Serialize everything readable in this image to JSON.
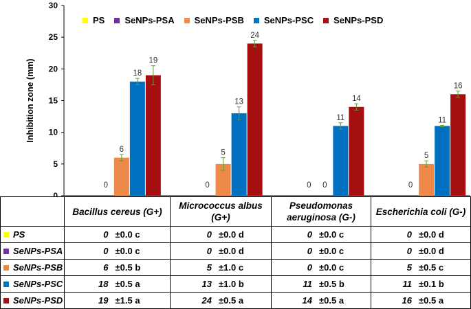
{
  "chart_data": {
    "type": "bar",
    "title": "",
    "xlabel": "",
    "ylabel": "Inhibition zone (mm)",
    "ylim": [
      0,
      30
    ],
    "yticks": [
      "0",
      "5",
      "10",
      "15",
      "20",
      "25",
      "30"
    ],
    "grid": false,
    "legend_position": "top",
    "categories": [
      "Bacillus cereus (G+)",
      "Micrococcus albus (G+)",
      "Pseudomonas aeruginosa (G-)",
      "Escherichia coli (G-)"
    ],
    "series": [
      {
        "name": "PS",
        "color": "#ffff00",
        "values": [
          0,
          0,
          0,
          0
        ],
        "errors": [
          0.0,
          0.0,
          0.0,
          0.0
        ],
        "error_text": [
          "±0.0",
          "±0.0",
          "±0.0",
          "±0.0"
        ],
        "letters": [
          "c",
          "d",
          "c",
          "d"
        ],
        "bar_labels": [
          "",
          "",
          "",
          ""
        ]
      },
      {
        "name": "SeNPs-PSA",
        "color": "#7030a0",
        "values": [
          0,
          0,
          0,
          0
        ],
        "errors": [
          0.0,
          0.0,
          0.0,
          0.0
        ],
        "error_text": [
          "±0.0",
          "±0.0",
          "±0.0",
          "±0.0"
        ],
        "letters": [
          "c",
          "d",
          "c",
          "d"
        ],
        "bar_labels": [
          "0",
          "0",
          "0",
          "0"
        ]
      },
      {
        "name": "SeNPs-PSB",
        "color": "#ed8a4a",
        "values": [
          6,
          5,
          0,
          5
        ],
        "errors": [
          0.5,
          1.0,
          0.0,
          0.5
        ],
        "error_text": [
          "±0.5",
          "±1.0",
          "±0.0",
          "±0.5"
        ],
        "letters": [
          "b",
          "c",
          "c",
          "c"
        ],
        "bar_labels": [
          "6",
          "5",
          "0",
          "5"
        ]
      },
      {
        "name": "SeNPs-PSC",
        "color": "#0070c0",
        "values": [
          18,
          13,
          11,
          11
        ],
        "errors": [
          0.5,
          1.0,
          0.5,
          0.1
        ],
        "error_text": [
          "±0.5",
          "±1.0",
          "±0.5",
          "±0.1"
        ],
        "letters": [
          "a",
          "b",
          "b",
          "b"
        ],
        "bar_labels": [
          "18",
          "13",
          "11",
          "11"
        ]
      },
      {
        "name": "SeNPs-PSD",
        "color": "#a50f0f",
        "values": [
          19,
          24,
          14,
          16
        ],
        "errors": [
          1.5,
          0.5,
          0.5,
          0.5
        ],
        "error_text": [
          "±1.5",
          "±0.5",
          "±0.5",
          "±0.5"
        ],
        "letters": [
          "a",
          "a",
          "a",
          "a"
        ],
        "bar_labels": [
          "19",
          "24",
          "14",
          "16"
        ]
      }
    ]
  },
  "table": {
    "header": [
      "Bacillus cereus (G+)",
      "Micrococcus albus (G+)",
      "Pseudomonas aeruginosa (G-)",
      "Escherichia coli (G-)"
    ]
  }
}
